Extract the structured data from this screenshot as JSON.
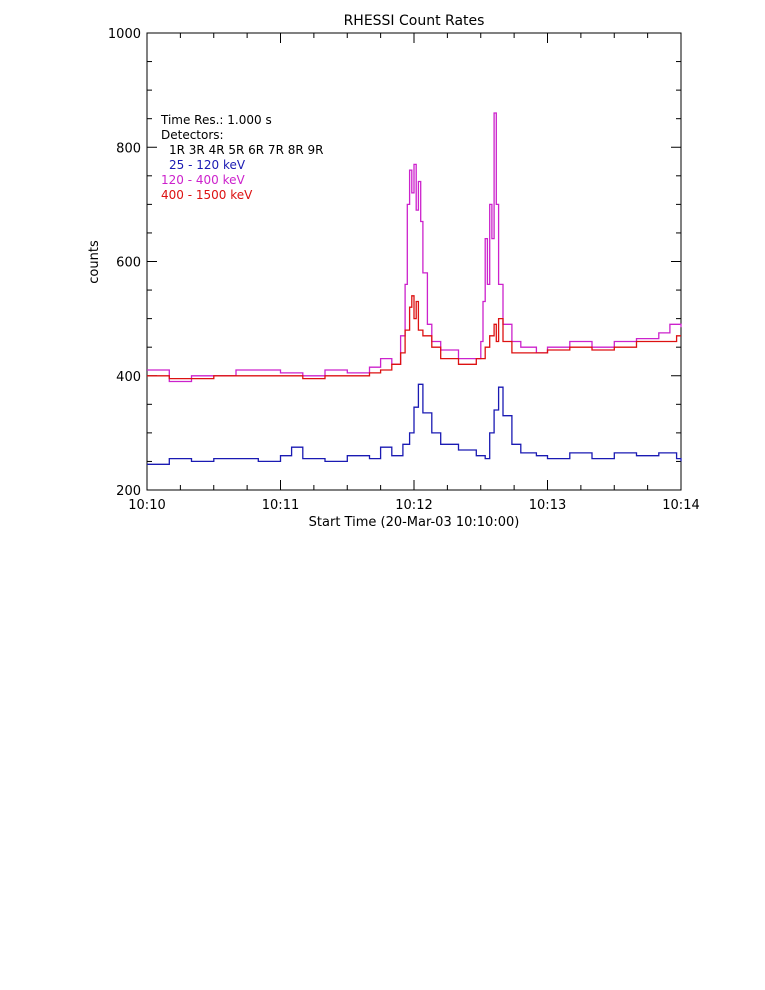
{
  "chart_data": {
    "type": "line",
    "title": "RHESSI Count Rates",
    "xlabel": "Start Time (20-Mar-03 10:10:00)",
    "ylabel": "counts",
    "xlim": [
      0,
      240
    ],
    "ylim": [
      200,
      1000
    ],
    "x_tick_values": [
      0,
      60,
      120,
      180,
      240
    ],
    "x_tick_labels": [
      "10:10",
      "10:11",
      "10:12",
      "10:13",
      "10:14"
    ],
    "y_tick_values": [
      200,
      400,
      600,
      800,
      1000
    ],
    "y_tick_labels": [
      "200",
      "400",
      "600",
      "800",
      "1000"
    ],
    "y_minor_step": 50,
    "x_minor_step": 15,
    "legend": {
      "lines": [
        "Time Res.: 1.000 s",
        "Detectors:",
        "1R 3R 4R 5R 6R 7R 8R 9R"
      ],
      "position": "top-left"
    },
    "series": [
      {
        "name": "25 - 120 keV",
        "color": "#1a1ab3",
        "points": [
          [
            0,
            245
          ],
          [
            10,
            255
          ],
          [
            20,
            250
          ],
          [
            30,
            255
          ],
          [
            40,
            255
          ],
          [
            50,
            250
          ],
          [
            60,
            260
          ],
          [
            65,
            275
          ],
          [
            70,
            255
          ],
          [
            80,
            250
          ],
          [
            90,
            260
          ],
          [
            100,
            255
          ],
          [
            105,
            275
          ],
          [
            110,
            260
          ],
          [
            115,
            280
          ],
          [
            118,
            300
          ],
          [
            120,
            345
          ],
          [
            122,
            385
          ],
          [
            124,
            335
          ],
          [
            128,
            300
          ],
          [
            132,
            280
          ],
          [
            140,
            270
          ],
          [
            148,
            260
          ],
          [
            152,
            255
          ],
          [
            154,
            300
          ],
          [
            156,
            340
          ],
          [
            158,
            380
          ],
          [
            160,
            330
          ],
          [
            164,
            280
          ],
          [
            168,
            265
          ],
          [
            175,
            260
          ],
          [
            180,
            255
          ],
          [
            190,
            265
          ],
          [
            200,
            255
          ],
          [
            210,
            265
          ],
          [
            220,
            260
          ],
          [
            230,
            265
          ],
          [
            238,
            255
          ],
          [
            240,
            250
          ]
        ]
      },
      {
        "name": "120 - 400 keV",
        "color": "#cc22cc",
        "points": [
          [
            0,
            410
          ],
          [
            10,
            390
          ],
          [
            20,
            400
          ],
          [
            30,
            400
          ],
          [
            40,
            410
          ],
          [
            50,
            410
          ],
          [
            60,
            405
          ],
          [
            70,
            400
          ],
          [
            80,
            410
          ],
          [
            90,
            405
          ],
          [
            100,
            415
          ],
          [
            105,
            430
          ],
          [
            110,
            420
          ],
          [
            114,
            470
          ],
          [
            116,
            560
          ],
          [
            117,
            700
          ],
          [
            118,
            760
          ],
          [
            119,
            720
          ],
          [
            120,
            770
          ],
          [
            121,
            690
          ],
          [
            122,
            740
          ],
          [
            123,
            670
          ],
          [
            124,
            580
          ],
          [
            126,
            490
          ],
          [
            128,
            460
          ],
          [
            132,
            445
          ],
          [
            140,
            430
          ],
          [
            148,
            430
          ],
          [
            150,
            460
          ],
          [
            151,
            530
          ],
          [
            152,
            640
          ],
          [
            153,
            560
          ],
          [
            154,
            700
          ],
          [
            155,
            640
          ],
          [
            156,
            860
          ],
          [
            157,
            700
          ],
          [
            158,
            560
          ],
          [
            160,
            490
          ],
          [
            164,
            460
          ],
          [
            168,
            450
          ],
          [
            175,
            440
          ],
          [
            180,
            450
          ],
          [
            190,
            460
          ],
          [
            200,
            450
          ],
          [
            210,
            460
          ],
          [
            220,
            465
          ],
          [
            230,
            475
          ],
          [
            235,
            490
          ],
          [
            240,
            485
          ]
        ]
      },
      {
        "name": "400 - 1500 keV",
        "color": "#dd1111",
        "points": [
          [
            0,
            400
          ],
          [
            10,
            395
          ],
          [
            20,
            395
          ],
          [
            30,
            400
          ],
          [
            40,
            400
          ],
          [
            50,
            400
          ],
          [
            60,
            400
          ],
          [
            70,
            395
          ],
          [
            80,
            400
          ],
          [
            90,
            400
          ],
          [
            100,
            405
          ],
          [
            105,
            410
          ],
          [
            110,
            420
          ],
          [
            114,
            440
          ],
          [
            116,
            480
          ],
          [
            118,
            520
          ],
          [
            119,
            540
          ],
          [
            120,
            500
          ],
          [
            121,
            530
          ],
          [
            122,
            480
          ],
          [
            124,
            470
          ],
          [
            128,
            450
          ],
          [
            132,
            430
          ],
          [
            140,
            420
          ],
          [
            148,
            430
          ],
          [
            152,
            450
          ],
          [
            154,
            470
          ],
          [
            156,
            490
          ],
          [
            157,
            460
          ],
          [
            158,
            500
          ],
          [
            160,
            460
          ],
          [
            164,
            440
          ],
          [
            170,
            440
          ],
          [
            180,
            445
          ],
          [
            190,
            450
          ],
          [
            200,
            445
          ],
          [
            210,
            450
          ],
          [
            220,
            460
          ],
          [
            230,
            460
          ],
          [
            238,
            470
          ],
          [
            240,
            470
          ]
        ]
      }
    ]
  }
}
